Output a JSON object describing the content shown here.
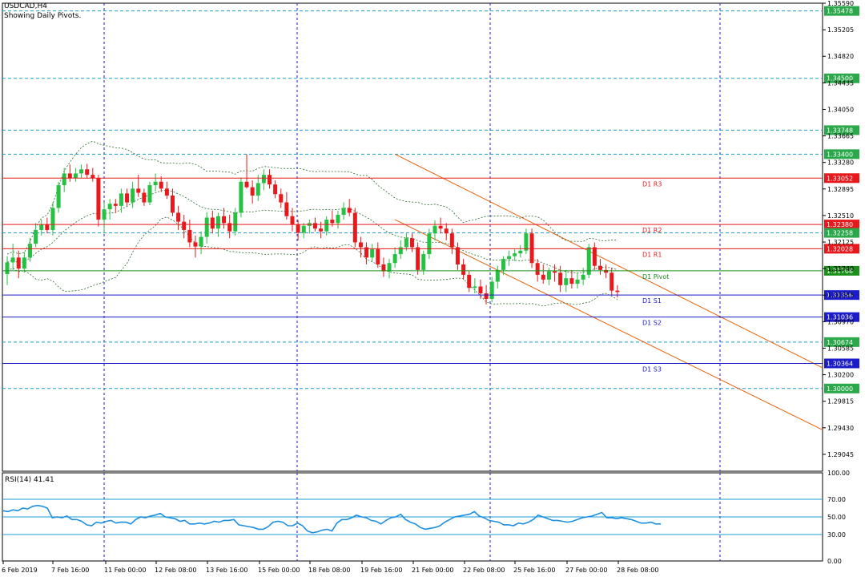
{
  "header": {
    "symbol": "USDCAD,H4",
    "note": "Showing Daily Pivots."
  },
  "rsi": {
    "label": "RSI(14) 41.41",
    "levels": [
      "100.00",
      "70.00",
      "50.00",
      "30.00",
      "0.00"
    ]
  },
  "colors": {
    "bull": "#26c043",
    "bear": "#e8191c",
    "pivot": "#1a8f1a",
    "resistance": "#e8191c",
    "support": "#1c1cc8",
    "channel": "#e3620e",
    "price_level": "#1a9bd0",
    "grid": "#1c1cc8",
    "band": "#2b6b2b",
    "rsi_line": "#1f8fe0"
  },
  "chart_data": {
    "type": "candlestick",
    "symbol": "USDCAD",
    "timeframe": "H4",
    "ylim": [
      1.288,
      1.3559
    ],
    "price_axis_ticks": [
      "1.35590",
      "1.35205",
      "1.34820",
      "1.34435",
      "1.34050",
      "1.33665",
      "1.33280",
      "1.32895",
      "1.32510",
      "1.32125",
      "1.31740",
      "1.31355",
      "1.30970",
      "1.30585",
      "1.30200",
      "1.29815",
      "1.29430",
      "1.29045"
    ],
    "date_labels": [
      "6 Feb 2019",
      "7 Feb 16:00",
      "11 Feb 00:00",
      "12 Feb 08:00",
      "13 Feb 16:00",
      "15 Feb 00:00",
      "18 Feb 08:00",
      "19 Feb 16:00",
      "21 Feb 00:00",
      "22 Feb 08:00",
      "25 Feb 16:00",
      "27 Feb 00:00",
      "28 Feb 08:00"
    ],
    "pivots": [
      {
        "name": "D1 R3",
        "value": 1.33052,
        "label": "1.33052",
        "color": "#e8191c"
      },
      {
        "name": "D1 R2",
        "value": 1.3238,
        "label": "1.32380",
        "color": "#e8191c"
      },
      {
        "name": "D1 R1",
        "value": 1.32028,
        "label": "1.32028",
        "color": "#e8191c"
      },
      {
        "name": "D1 Pivot",
        "value": 1.31708,
        "label": "1.31708",
        "color": "#1a8f1a"
      },
      {
        "name": "D1 S1",
        "value": 1.31356,
        "label": "1.31356",
        "color": "#1c1cc8"
      },
      {
        "name": "D1 S2",
        "value": 1.31036,
        "label": "1.31036",
        "color": "#1c1cc8"
      },
      {
        "name": "D1 S3",
        "value": 1.30364,
        "label": "1.30364",
        "color": "#1c1cc8"
      }
    ],
    "horizontal_levels": [
      {
        "value": 1.35478,
        "label": "1.35478"
      },
      {
        "value": 1.345,
        "label": "1.34500"
      },
      {
        "value": 1.33748,
        "label": "1.33748"
      },
      {
        "value": 1.334,
        "label": "1.33400"
      },
      {
        "value": 1.32258,
        "label": "1.32258"
      },
      {
        "value": 1.30674,
        "label": "1.30674"
      },
      {
        "value": 1.3,
        "label": "1.30000"
      }
    ],
    "channel": {
      "upper": [
        [
          0.0,
          1.334
        ],
        [
          1.0,
          1.303
        ]
      ],
      "lower": [
        [
          0.0,
          1.3245
        ],
        [
          1.0,
          1.294
        ]
      ],
      "start_index": 68
    },
    "candles": [
      [
        1.3166,
        1.3192,
        1.315,
        1.3183
      ],
      [
        1.3183,
        1.321,
        1.3172,
        1.319
      ],
      [
        1.319,
        1.32,
        1.316,
        1.3174
      ],
      [
        1.3174,
        1.3198,
        1.3168,
        1.319
      ],
      [
        1.319,
        1.3218,
        1.3184,
        1.321
      ],
      [
        1.321,
        1.324,
        1.3205,
        1.323
      ],
      [
        1.323,
        1.3245,
        1.3222,
        1.3238
      ],
      [
        1.3238,
        1.3248,
        1.3225,
        1.323
      ],
      [
        1.323,
        1.327,
        1.3222,
        1.3262
      ],
      [
        1.3262,
        1.33,
        1.3255,
        1.3295
      ],
      [
        1.3295,
        1.332,
        1.3285,
        1.3312
      ],
      [
        1.3312,
        1.3325,
        1.33,
        1.3305
      ],
      [
        1.3305,
        1.332,
        1.33,
        1.3312
      ],
      [
        1.3312,
        1.3325,
        1.3305,
        1.3318
      ],
      [
        1.3318,
        1.3326,
        1.3305,
        1.331
      ],
      [
        1.331,
        1.332,
        1.33,
        1.3305
      ],
      [
        1.3305,
        1.331,
        1.3235,
        1.3245
      ],
      [
        1.3245,
        1.327,
        1.3225,
        1.326
      ],
      [
        1.326,
        1.3275,
        1.3245,
        1.3268
      ],
      [
        1.3268,
        1.3275,
        1.3255,
        1.3265
      ],
      [
        1.3265,
        1.329,
        1.3255,
        1.3283
      ],
      [
        1.3283,
        1.329,
        1.3265,
        1.327
      ],
      [
        1.327,
        1.33,
        1.3262,
        1.329
      ],
      [
        1.329,
        1.331,
        1.3278,
        1.3284
      ],
      [
        1.3284,
        1.329,
        1.3265,
        1.327
      ],
      [
        1.327,
        1.33,
        1.3266,
        1.3295
      ],
      [
        1.3295,
        1.3312,
        1.3286,
        1.33
      ],
      [
        1.33,
        1.3308,
        1.3285,
        1.329
      ],
      [
        1.329,
        1.33,
        1.3275,
        1.328
      ],
      [
        1.328,
        1.329,
        1.325,
        1.3255
      ],
      [
        1.3255,
        1.3265,
        1.323,
        1.3242
      ],
      [
        1.3242,
        1.3252,
        1.3218,
        1.323
      ],
      [
        1.323,
        1.3245,
        1.3205,
        1.3212
      ],
      [
        1.3212,
        1.3222,
        1.319,
        1.3206
      ],
      [
        1.3206,
        1.3228,
        1.3195,
        1.322
      ],
      [
        1.322,
        1.3256,
        1.321,
        1.3248
      ],
      [
        1.3248,
        1.3258,
        1.3225,
        1.3232
      ],
      [
        1.3232,
        1.3255,
        1.322,
        1.325
      ],
      [
        1.325,
        1.3262,
        1.3232,
        1.324
      ],
      [
        1.324,
        1.3252,
        1.3218,
        1.3228
      ],
      [
        1.3228,
        1.3262,
        1.3222,
        1.3255
      ],
      [
        1.3255,
        1.3306,
        1.3248,
        1.33
      ],
      [
        1.33,
        1.334,
        1.329,
        1.3292
      ],
      [
        1.3292,
        1.3302,
        1.3268,
        1.328
      ],
      [
        1.328,
        1.331,
        1.3272,
        1.3298
      ],
      [
        1.3298,
        1.3318,
        1.3288,
        1.331
      ],
      [
        1.331,
        1.3318,
        1.329,
        1.3296
      ],
      [
        1.3296,
        1.3302,
        1.3276,
        1.3282
      ],
      [
        1.3282,
        1.329,
        1.3262,
        1.327
      ],
      [
        1.327,
        1.3285,
        1.3245,
        1.325
      ],
      [
        1.325,
        1.3262,
        1.3228,
        1.3238
      ],
      [
        1.3238,
        1.3245,
        1.3215,
        1.3226
      ],
      [
        1.3226,
        1.324,
        1.3218,
        1.3236
      ],
      [
        1.3236,
        1.3245,
        1.3225,
        1.324
      ],
      [
        1.324,
        1.3248,
        1.3228,
        1.3232
      ],
      [
        1.3232,
        1.3242,
        1.3218,
        1.3228
      ],
      [
        1.3228,
        1.325,
        1.3222,
        1.3245
      ],
      [
        1.3245,
        1.3258,
        1.3235,
        1.324
      ],
      [
        1.324,
        1.3258,
        1.3232,
        1.3252
      ],
      [
        1.3252,
        1.327,
        1.3245,
        1.3262
      ],
      [
        1.3262,
        1.3275,
        1.325,
        1.3255
      ],
      [
        1.3255,
        1.3262,
        1.3205,
        1.3212
      ],
      [
        1.3212,
        1.322,
        1.319,
        1.3205
      ],
      [
        1.3205,
        1.3212,
        1.318,
        1.319
      ],
      [
        1.319,
        1.321,
        1.3184,
        1.3202
      ],
      [
        1.3202,
        1.3212,
        1.3175,
        1.318
      ],
      [
        1.318,
        1.319,
        1.3162,
        1.317
      ],
      [
        1.317,
        1.3188,
        1.316,
        1.3182
      ],
      [
        1.3182,
        1.3205,
        1.3175,
        1.3195
      ],
      [
        1.3195,
        1.3215,
        1.3188,
        1.3205
      ],
      [
        1.3205,
        1.3225,
        1.32,
        1.3218
      ],
      [
        1.3218,
        1.3225,
        1.3198,
        1.3205
      ],
      [
        1.3205,
        1.3212,
        1.3165,
        1.3172
      ],
      [
        1.3172,
        1.32,
        1.3165,
        1.3195
      ],
      [
        1.3195,
        1.3232,
        1.3188,
        1.3225
      ],
      [
        1.3225,
        1.3244,
        1.3215,
        1.3236
      ],
      [
        1.3236,
        1.3248,
        1.3225,
        1.3232
      ],
      [
        1.3232,
        1.324,
        1.3215,
        1.3225
      ],
      [
        1.3225,
        1.3232,
        1.3195,
        1.3205
      ],
      [
        1.3205,
        1.3212,
        1.3172,
        1.318
      ],
      [
        1.318,
        1.3188,
        1.3158,
        1.3165
      ],
      [
        1.3165,
        1.317,
        1.314,
        1.3146
      ],
      [
        1.3146,
        1.316,
        1.3138,
        1.3148
      ],
      [
        1.3148,
        1.3158,
        1.313,
        1.3138
      ],
      [
        1.3138,
        1.315,
        1.3122,
        1.313
      ],
      [
        1.313,
        1.3162,
        1.3125,
        1.3155
      ],
      [
        1.3155,
        1.3178,
        1.3145,
        1.3172
      ],
      [
        1.3172,
        1.3192,
        1.3165,
        1.3188
      ],
      [
        1.3188,
        1.32,
        1.3178,
        1.3192
      ],
      [
        1.3192,
        1.3202,
        1.3185,
        1.3196
      ],
      [
        1.3196,
        1.3208,
        1.319,
        1.32
      ],
      [
        1.32,
        1.3232,
        1.3195,
        1.3225
      ],
      [
        1.3225,
        1.3232,
        1.3175,
        1.3182
      ],
      [
        1.3182,
        1.3188,
        1.3155,
        1.3165
      ],
      [
        1.3165,
        1.318,
        1.3152,
        1.3158
      ],
      [
        1.3158,
        1.3175,
        1.315,
        1.317
      ],
      [
        1.317,
        1.318,
        1.3155,
        1.3168
      ],
      [
        1.3168,
        1.3178,
        1.314,
        1.315
      ],
      [
        1.315,
        1.3172,
        1.314,
        1.316
      ],
      [
        1.316,
        1.3172,
        1.3145,
        1.3152
      ],
      [
        1.3152,
        1.3168,
        1.3145,
        1.3158
      ],
      [
        1.3158,
        1.3175,
        1.315,
        1.3165
      ],
      [
        1.3165,
        1.321,
        1.316,
        1.3205
      ],
      [
        1.3205,
        1.3212,
        1.3172,
        1.3178
      ],
      [
        1.3178,
        1.3188,
        1.3165,
        1.3172
      ],
      [
        1.3172,
        1.318,
        1.316,
        1.3168
      ],
      [
        1.3168,
        1.3175,
        1.3135,
        1.3142
      ],
      [
        1.3142,
        1.315,
        1.3132,
        1.314
      ]
    ],
    "rsi_values": [
      57,
      56,
      58,
      57,
      60,
      59,
      62,
      63,
      62,
      60,
      49,
      50,
      49,
      51,
      47,
      47,
      45,
      41,
      40,
      44,
      43,
      45,
      46,
      43,
      44,
      44,
      42,
      47,
      50,
      49,
      51,
      52,
      54,
      50,
      49,
      48,
      45,
      46,
      42,
      42,
      43,
      42,
      43,
      45,
      44,
      46,
      46,
      47,
      41,
      40,
      39,
      38,
      36,
      36,
      39,
      44,
      45,
      44,
      40,
      40,
      43,
      40,
      34,
      32,
      33,
      35,
      36,
      34,
      43,
      47,
      47,
      49,
      52,
      50,
      49,
      46,
      45,
      42,
      46,
      49,
      50,
      53,
      47,
      44,
      42,
      38,
      36,
      37,
      38,
      40,
      44,
      47,
      50,
      51,
      52,
      53,
      56,
      51,
      49,
      46,
      45,
      44,
      41,
      41,
      40,
      43,
      42,
      44,
      47,
      52,
      50,
      48,
      46,
      46,
      45,
      44,
      45,
      47,
      49,
      50,
      51,
      53,
      55,
      49,
      49,
      48,
      49,
      48,
      47,
      45,
      43,
      43,
      44,
      42,
      42
    ],
    "rsi_ylim": [
      0,
      100
    ]
  }
}
